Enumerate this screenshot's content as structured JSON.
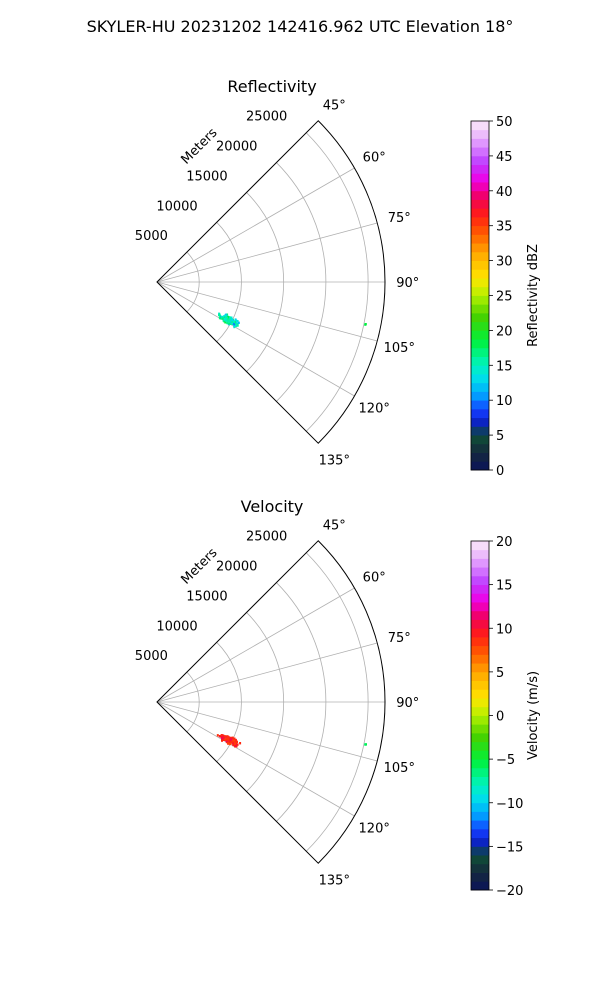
{
  "figure": {
    "title": "SKYLER-HU  20231202  142416.962 UTC Elevation 18°"
  },
  "chart_data": [
    {
      "type": "polar_scatter",
      "title": "Reflectivity",
      "rlabel": "Meters",
      "rticks": [
        "5000",
        "10000",
        "15000",
        "20000",
        "25000"
      ],
      "r_values": [
        5000,
        10000,
        15000,
        20000,
        25000
      ],
      "rlim": [
        0,
        27000
      ],
      "theta_labels": [
        "45°",
        "60°",
        "75°",
        "90°",
        "105°",
        "120°",
        "135°"
      ],
      "theta_values_deg": [
        45,
        60,
        75,
        90,
        105,
        120,
        135
      ],
      "theta_range_deg": [
        45,
        135
      ],
      "grid": true,
      "colorbar": {
        "label": "Reflectivity dBZ",
        "range": [
          0,
          50
        ],
        "ticks": [
          "0",
          "5",
          "10",
          "15",
          "20",
          "25",
          "30",
          "35",
          "40",
          "45",
          "50"
        ],
        "tick_values": [
          0,
          5,
          10,
          15,
          20,
          25,
          30,
          35,
          40,
          45,
          50
        ]
      },
      "clusters": [
        {
          "theta_deg": 118,
          "r": 9600,
          "value": 15,
          "points": 150,
          "theta_spread": 3.2,
          "r_spread": 1600,
          "value_spread": 3
        },
        {
          "theta_deg": 101.5,
          "r": 25200,
          "value": 18,
          "points": 2,
          "theta_spread": 0.2,
          "r_spread": 80,
          "value_spread": 1
        }
      ]
    },
    {
      "type": "polar_scatter",
      "title": "Velocity",
      "rlabel": "Meters",
      "rticks": [
        "5000",
        "10000",
        "15000",
        "20000",
        "25000"
      ],
      "r_values": [
        5000,
        10000,
        15000,
        20000,
        25000
      ],
      "rlim": [
        0,
        27000
      ],
      "theta_labels": [
        "45°",
        "60°",
        "75°",
        "90°",
        "105°",
        "120°",
        "135°"
      ],
      "theta_values_deg": [
        45,
        60,
        75,
        90,
        105,
        120,
        135
      ],
      "theta_range_deg": [
        45,
        135
      ],
      "grid": true,
      "colorbar": {
        "label": "Velocity (m/s)",
        "range": [
          -20,
          20
        ],
        "ticks": [
          "−20",
          "−15",
          "−10",
          "−5",
          "0",
          "5",
          "10",
          "15",
          "20"
        ],
        "tick_values": [
          -20,
          -15,
          -10,
          -5,
          0,
          5,
          10,
          15,
          20
        ]
      },
      "clusters": [
        {
          "theta_deg": 118,
          "r": 9600,
          "value": 9,
          "points": 150,
          "theta_spread": 3.2,
          "r_spread": 1600,
          "value_spread": 1.5
        },
        {
          "theta_deg": 101.5,
          "r": 25200,
          "value": -6,
          "points": 2,
          "theta_spread": 0.2,
          "r_spread": 80,
          "value_spread": 0.5
        }
      ]
    }
  ]
}
